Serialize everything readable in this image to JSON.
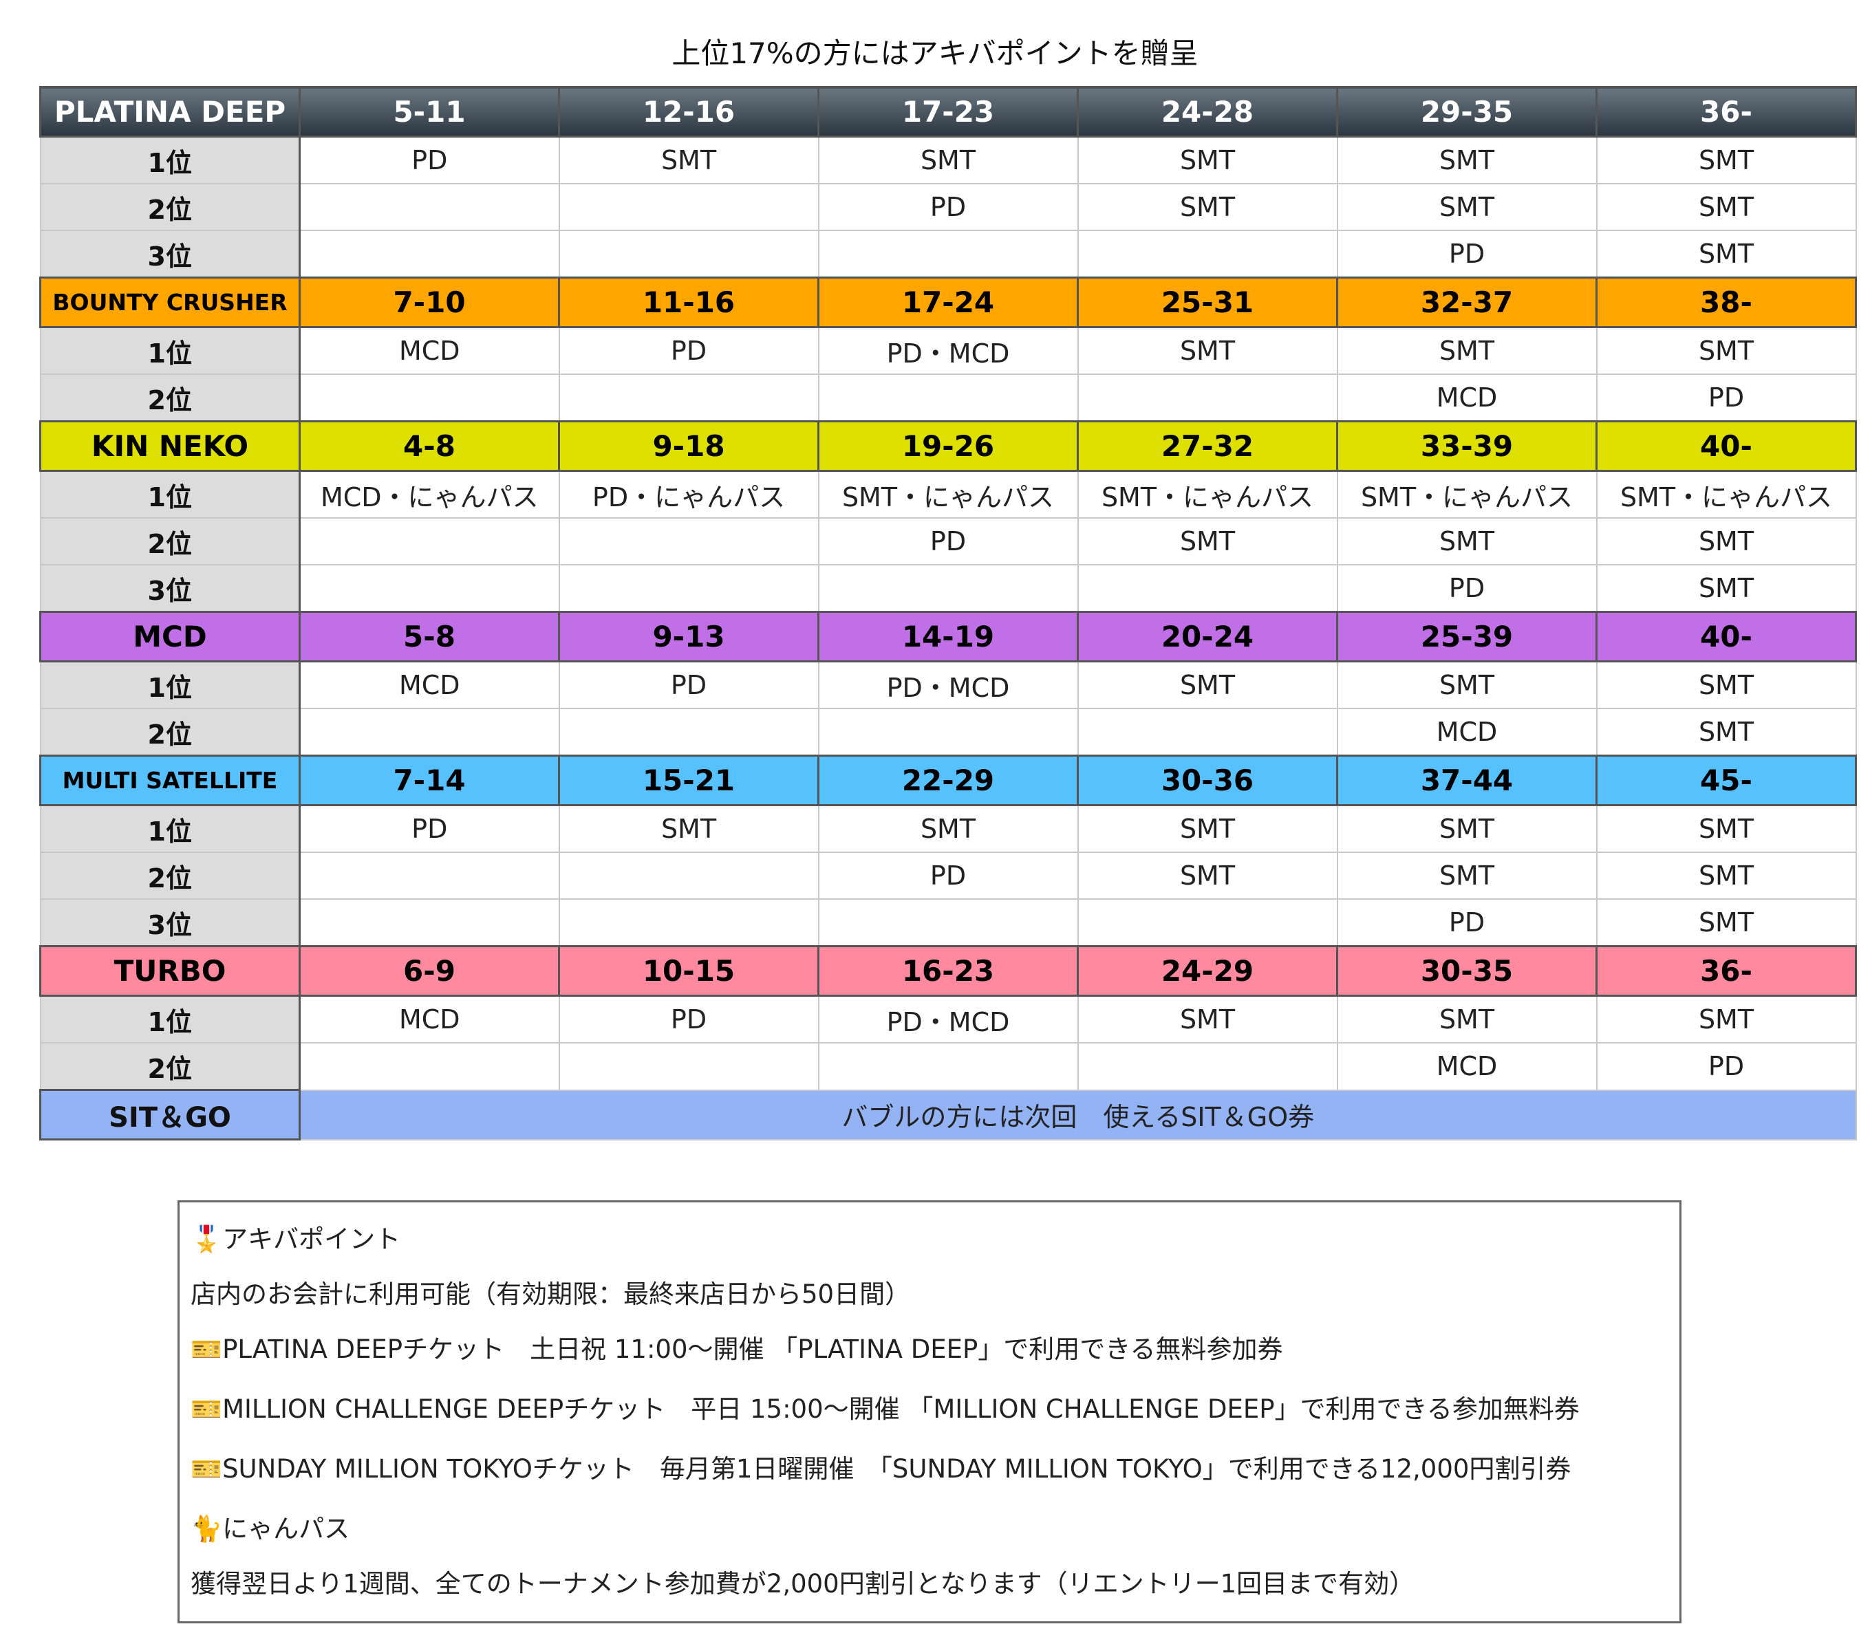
{
  "title": "上位17%の方にはアキバポイントを贈呈",
  "sections": [
    {
      "name": "PLATINA DEEP",
      "color": "#3c4852",
      "text_color": "#ffffff",
      "ranges": [
        "5-11",
        "12-16",
        "17-23",
        "24-28",
        "29-35",
        "36-"
      ],
      "rows": [
        {
          "label": "1位",
          "cells": [
            "PD",
            "SMT",
            "SMT",
            "SMT",
            "SMT",
            "SMT"
          ]
        },
        {
          "label": "2位",
          "cells": [
            null,
            null,
            "PD",
            "SMT",
            "SMT",
            "SMT"
          ]
        },
        {
          "label": "3位",
          "cells": [
            null,
            null,
            null,
            null,
            "PD",
            "SMT"
          ]
        }
      ]
    },
    {
      "name": "BOUNTY CRUSHER",
      "color": "#fea500",
      "text_color": "#000000",
      "ranges": [
        "7-10",
        "11-16",
        "17-24",
        "25-31",
        "32-37",
        "38-"
      ],
      "rows": [
        {
          "label": "1位",
          "cells": [
            "MCD",
            "PD",
            "PD・MCD",
            "SMT",
            "SMT",
            "SMT"
          ]
        },
        {
          "label": "2位",
          "cells": [
            null,
            null,
            null,
            null,
            "MCD",
            "PD"
          ]
        }
      ]
    },
    {
      "name": "KIN NEKO",
      "color": "#dde000",
      "text_color": "#000000",
      "ranges": [
        "4-8",
        "9-18",
        "19-26",
        "27-32",
        "33-39",
        "40-"
      ],
      "rows": [
        {
          "label": "1位",
          "cells": [
            "MCD・にゃんパス",
            "PD・にゃんパス",
            "SMT・にゃんパス",
            "SMT・にゃんパス",
            "SMT・にゃんパス",
            "SMT・にゃんパス"
          ]
        },
        {
          "label": "2位",
          "cells": [
            null,
            null,
            "PD",
            "SMT",
            "SMT",
            "SMT"
          ]
        },
        {
          "label": "3位",
          "cells": [
            null,
            null,
            null,
            null,
            "PD",
            "SMT"
          ]
        }
      ]
    },
    {
      "name": "MCD",
      "color": "#c16fe6",
      "text_color": "#000000",
      "ranges": [
        "5-8",
        "9-13",
        "14-19",
        "20-24",
        "25-39",
        "40-"
      ],
      "rows": [
        {
          "label": "1位",
          "cells": [
            "MCD",
            "PD",
            "PD・MCD",
            "SMT",
            "SMT",
            "SMT"
          ]
        },
        {
          "label": "2位",
          "cells": [
            null,
            null,
            null,
            null,
            "MCD",
            "SMT"
          ]
        }
      ]
    },
    {
      "name": "MULTI SATELLITE",
      "color": "#56c1fd",
      "text_color": "#000000",
      "ranges": [
        "7-14",
        "15-21",
        "22-29",
        "30-36",
        "37-44",
        "45-"
      ],
      "rows": [
        {
          "label": "1位",
          "cells": [
            "PD",
            "SMT",
            "SMT",
            "SMT",
            "SMT",
            "SMT"
          ]
        },
        {
          "label": "2位",
          "cells": [
            null,
            null,
            "PD",
            "SMT",
            "SMT",
            "SMT"
          ]
        },
        {
          "label": "3位",
          "cells": [
            null,
            null,
            null,
            null,
            "PD",
            "SMT"
          ]
        }
      ]
    },
    {
      "name": "TURBO",
      "color": "#ff8aa0",
      "text_color": "#000000",
      "ranges": [
        "6-9",
        "10-15",
        "16-23",
        "24-29",
        "30-35",
        "36-"
      ],
      "rows": [
        {
          "label": "1位",
          "cells": [
            "MCD",
            "PD",
            "PD・MCD",
            "SMT",
            "SMT",
            "SMT"
          ]
        },
        {
          "label": "2位",
          "cells": [
            null,
            null,
            null,
            null,
            "MCD",
            "PD"
          ]
        }
      ]
    }
  ],
  "sit_go": {
    "name": "SIT＆GO",
    "text": "バブルの方には次回　使えるSIT＆GO券",
    "color": "#93b3f5"
  },
  "notes": [
    "🎖️アキバポイント",
    "店内のお会計に利用可能（有効期限：最終来店日から50日間）",
    "🎫PLATINA DEEPチケット　土日祝 11:00〜開催 「PLATINA DEEP」で利用できる無料参加券",
    "🎫MILLION CHALLENGE DEEPチケット　平日 15:00〜開催 「MILLION CHALLENGE DEEP」で利用できる参加無料券",
    "🎫SUNDAY MILLION TOKYOチケット　毎月第1日曜開催　「SUNDAY MILLION TOKYO」で利用できる12,000円割引券",
    "🐈にゃんパス",
    "獲得翌日より1週間、全てのトーナメント参加費が2,000円割引となります（リエントリー1回目まで有効）"
  ]
}
